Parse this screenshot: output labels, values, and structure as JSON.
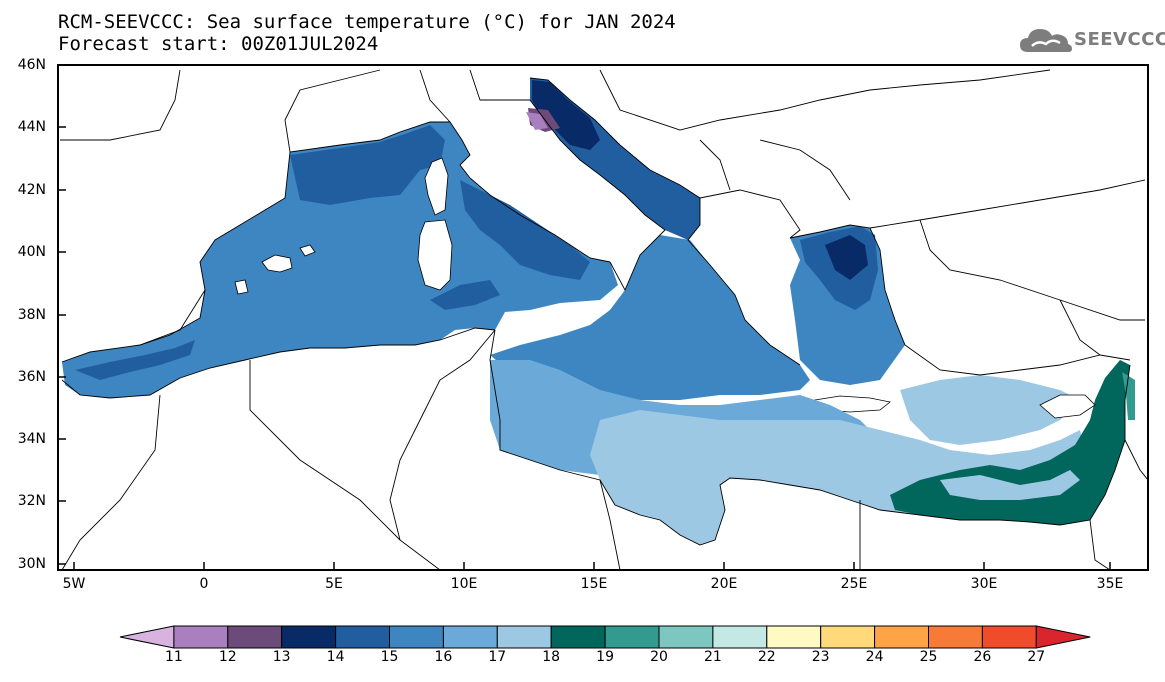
{
  "header": {
    "title_line1": "RCM-SEEVCCC: Sea surface temperature (°C) for JAN 2024",
    "title_line2": "Forecast start: 00Z01JUL2024"
  },
  "logo": {
    "icon": "cloud-logo-icon",
    "text": "SEEVCCC"
  },
  "map": {
    "lon_range": [
      -5.5,
      36.5
    ],
    "lat_range": [
      30,
      46
    ],
    "lat_labels": [
      "46N",
      "44N",
      "42N",
      "40N",
      "38N",
      "36N",
      "34N",
      "32N",
      "30N"
    ],
    "lon_labels": [
      "5W",
      "0",
      "5E",
      "10E",
      "15E",
      "20E",
      "25E",
      "30E",
      "35E"
    ],
    "land_color": "#ffffff",
    "border_color": "#000000"
  },
  "colorbar": {
    "labels": [
      "11",
      "12",
      "13",
      "14",
      "15",
      "16",
      "17",
      "18",
      "19",
      "20",
      "21",
      "22",
      "23",
      "24",
      "25",
      "26",
      "27"
    ],
    "colors": [
      "#d8b3e0",
      "#a97fc0",
      "#6c4a7a",
      "#082a66",
      "#205e9f",
      "#3d86c1",
      "#6aa9d8",
      "#9dc8e3",
      "#01675c",
      "#339a90",
      "#7cc8c0",
      "#c4e8e3",
      "#fff9c4",
      "#ffd97a",
      "#fda447",
      "#f87a38",
      "#f04c2c",
      "#d9252b"
    ]
  },
  "legend_colors": {
    "sst_14": "#082a66",
    "sst_15": "#205e9f",
    "sst_16": "#3d86c1",
    "sst_17": "#6aa9d8",
    "sst_18": "#9dc8e3",
    "sst_19": "#01675c",
    "sst_20": "#339a90",
    "sst_13": "#6c4a7a",
    "sst_12": "#a97fc0"
  }
}
